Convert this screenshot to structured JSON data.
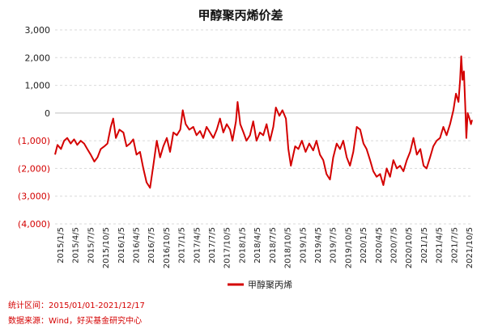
{
  "chart_data": {
    "type": "line",
    "title": "甲醇聚丙烯价差",
    "xlabel": "",
    "ylabel": "",
    "ylim": [
      -4000,
      3000
    ],
    "y_ticks": [
      3000,
      2000,
      1000,
      0,
      -1000,
      -2000,
      -3000,
      -4000
    ],
    "y_tick_labels": [
      "3,000",
      "2,000",
      "1,000",
      "0",
      "(1,000)",
      "(2,000)",
      "(3,000)",
      "(4,000)"
    ],
    "x_tick_labels": [
      "2015/1/5",
      "2015/4/5",
      "2015/7/5",
      "2015/10/5",
      "2016/1/5",
      "2016/4/5",
      "2016/7/5",
      "2016/10/5",
      "2017/1/5",
      "2017/4/5",
      "2017/7/5",
      "2017/10/5",
      "2018/1/5",
      "2018/4/5",
      "2018/7/5",
      "2018/10/5",
      "2019/1/5",
      "2019/4/5",
      "2019/7/5",
      "2019/10/5",
      "2020/1/5",
      "2020/4/5",
      "2020/7/5",
      "2020/10/5",
      "2021/1/5",
      "2021/4/5",
      "2021/7/5",
      "2021/10/5"
    ],
    "grid": true,
    "legend_position": "bottom",
    "series": [
      {
        "name": "甲醇聚丙烯",
        "color": "#d40000",
        "points": [
          [
            "2015/01/05",
            -1500
          ],
          [
            "2015/01/20",
            -1150
          ],
          [
            "2015/02/10",
            -1300
          ],
          [
            "2015/03/01",
            -1000
          ],
          [
            "2015/03/20",
            -900
          ],
          [
            "2015/04/10",
            -1100
          ],
          [
            "2015/05/01",
            -950
          ],
          [
            "2015/05/20",
            -1150
          ],
          [
            "2015/06/10",
            -1000
          ],
          [
            "2015/07/01",
            -1100
          ],
          [
            "2015/07/20",
            -1300
          ],
          [
            "2015/08/10",
            -1500
          ],
          [
            "2015/09/01",
            -1750
          ],
          [
            "2015/09/20",
            -1600
          ],
          [
            "2015/10/10",
            -1300
          ],
          [
            "2015/11/01",
            -1200
          ],
          [
            "2015/11/20",
            -1100
          ],
          [
            "2015/12/10",
            -500
          ],
          [
            "2015/12/25",
            -200
          ],
          [
            "2016/01/10",
            -900
          ],
          [
            "2016/02/01",
            -600
          ],
          [
            "2016/02/25",
            -700
          ],
          [
            "2016/03/15",
            -1200
          ],
          [
            "2016/04/05",
            -1100
          ],
          [
            "2016/04/25",
            -950
          ],
          [
            "2016/05/15",
            -1500
          ],
          [
            "2016/06/05",
            -1400
          ],
          [
            "2016/06/25",
            -2000
          ],
          [
            "2016/07/15",
            -2500
          ],
          [
            "2016/08/05",
            -2700
          ],
          [
            "2016/08/25",
            -1900
          ],
          [
            "2016/09/15",
            -1000
          ],
          [
            "2016/10/05",
            -1600
          ],
          [
            "2016/10/25",
            -1200
          ],
          [
            "2016/11/15",
            -900
          ],
          [
            "2016/12/05",
            -1400
          ],
          [
            "2016/12/25",
            -700
          ],
          [
            "2017/01/15",
            -800
          ],
          [
            "2017/02/05",
            -600
          ],
          [
            "2017/02/20",
            100
          ],
          [
            "2017/03/10",
            -400
          ],
          [
            "2017/04/01",
            -600
          ],
          [
            "2017/04/25",
            -500
          ],
          [
            "2017/05/15",
            -800
          ],
          [
            "2017/06/05",
            -650
          ],
          [
            "2017/06/25",
            -900
          ],
          [
            "2017/07/15",
            -500
          ],
          [
            "2017/08/05",
            -700
          ],
          [
            "2017/08/25",
            -900
          ],
          [
            "2017/09/15",
            -600
          ],
          [
            "2017/10/05",
            -200
          ],
          [
            "2017/10/25",
            -700
          ],
          [
            "2017/11/15",
            -400
          ],
          [
            "2017/12/05",
            -600
          ],
          [
            "2017/12/20",
            -1000
          ],
          [
            "2018/01/10",
            -300
          ],
          [
            "2018/01/20",
            400
          ],
          [
            "2018/02/05",
            -400
          ],
          [
            "2018/02/25",
            -700
          ],
          [
            "2018/03/15",
            -1000
          ],
          [
            "2018/04/05",
            -800
          ],
          [
            "2018/04/25",
            -300
          ],
          [
            "2018/05/15",
            -1000
          ],
          [
            "2018/06/05",
            -700
          ],
          [
            "2018/06/25",
            -800
          ],
          [
            "2018/07/15",
            -400
          ],
          [
            "2018/08/05",
            -1000
          ],
          [
            "2018/08/25",
            -500
          ],
          [
            "2018/09/10",
            200
          ],
          [
            "2018/10/01",
            -100
          ],
          [
            "2018/10/20",
            100
          ],
          [
            "2018/11/10",
            -200
          ],
          [
            "2018/11/25",
            -1300
          ],
          [
            "2018/12/10",
            -1900
          ],
          [
            "2019/01/05",
            -1200
          ],
          [
            "2019/01/25",
            -1300
          ],
          [
            "2019/02/15",
            -1000
          ],
          [
            "2019/03/10",
            -1400
          ],
          [
            "2019/04/01",
            -1100
          ],
          [
            "2019/04/25",
            -1350
          ],
          [
            "2019/05/15",
            -1000
          ],
          [
            "2019/06/05",
            -1500
          ],
          [
            "2019/06/25",
            -1700
          ],
          [
            "2019/07/15",
            -2200
          ],
          [
            "2019/08/05",
            -2400
          ],
          [
            "2019/08/25",
            -1600
          ],
          [
            "2019/09/15",
            -1100
          ],
          [
            "2019/10/05",
            -1300
          ],
          [
            "2019/10/25",
            -1000
          ],
          [
            "2019/11/15",
            -1600
          ],
          [
            "2019/12/05",
            -1900
          ],
          [
            "2019/12/25",
            -1400
          ],
          [
            "2020/01/15",
            -500
          ],
          [
            "2020/02/05",
            -600
          ],
          [
            "2020/02/25",
            -1100
          ],
          [
            "2020/03/15",
            -1300
          ],
          [
            "2020/04/05",
            -1700
          ],
          [
            "2020/04/25",
            -2100
          ],
          [
            "2020/05/15",
            -2300
          ],
          [
            "2020/06/05",
            -2200
          ],
          [
            "2020/06/25",
            -2600
          ],
          [
            "2020/07/15",
            -2000
          ],
          [
            "2020/08/05",
            -2300
          ],
          [
            "2020/08/25",
            -1700
          ],
          [
            "2020/09/15",
            -2000
          ],
          [
            "2020/10/05",
            -1900
          ],
          [
            "2020/10/25",
            -2100
          ],
          [
            "2020/11/15",
            -1700
          ],
          [
            "2020/12/05",
            -1400
          ],
          [
            "2020/12/25",
            -900
          ],
          [
            "2021/01/15",
            -1500
          ],
          [
            "2021/02/05",
            -1300
          ],
          [
            "2021/02/25",
            -1900
          ],
          [
            "2021/03/15",
            -2000
          ],
          [
            "2021/04/05",
            -1600
          ],
          [
            "2021/04/25",
            -1200
          ],
          [
            "2021/05/15",
            -1000
          ],
          [
            "2021/06/05",
            -900
          ],
          [
            "2021/06/25",
            -500
          ],
          [
            "2021/07/15",
            -800
          ],
          [
            "2021/08/05",
            -400
          ],
          [
            "2021/08/25",
            100
          ],
          [
            "2021/09/10",
            700
          ],
          [
            "2021/09/25",
            400
          ],
          [
            "2021/10/05",
            1200
          ],
          [
            "2021/10/12",
            2050
          ],
          [
            "2021/10/20",
            1200
          ],
          [
            "2021/10/28",
            1500
          ],
          [
            "2021/11/05",
            300
          ],
          [
            "2021/11/12",
            -900
          ],
          [
            "2021/11/20",
            0
          ],
          [
            "2021/12/01",
            -200
          ],
          [
            "2021/12/10",
            -400
          ],
          [
            "2021/12/17",
            -250
          ]
        ]
      }
    ]
  },
  "notes": {
    "range": "统计区间：2015/01/01-2021/12/17",
    "source": "数据来源：Wind，好买基金研究中心"
  }
}
